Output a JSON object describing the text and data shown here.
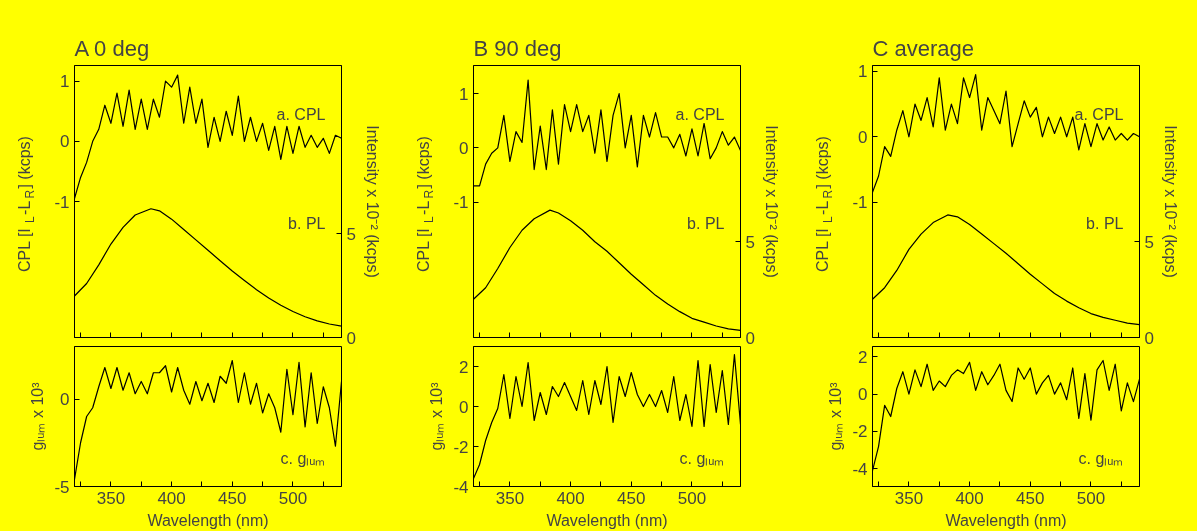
{
  "chart_data": [
    {
      "type": "line",
      "title": "A 0 deg",
      "ylabel": "CPL [I$_{L}$-L$_{R}$] (kcps)",
      "y2label": "Intensity x 10⁻² (kcps)",
      "annotations": [
        "a. CPL",
        "b. PL"
      ],
      "xlim": [
        320,
        540
      ],
      "xticks": [
        {
          "value": 325,
          "label": null
        },
        350,
        {
          "value": 375,
          "label": null
        },
        400,
        {
          "value": 425,
          "label": null
        },
        450,
        {
          "value": 475,
          "label": null
        },
        500,
        {
          "value": 525,
          "label": null
        }
      ],
      "ylim": [
        -3.26,
        1.26
      ],
      "yticks": [
        -1,
        0,
        1
      ],
      "y2lim": [
        0,
        13.1
      ],
      "y2ticks": [
        0,
        5
      ],
      "tick_labels": "y",
      "x": [
        320,
        325,
        330,
        335,
        340,
        345,
        350,
        355,
        360,
        365,
        370,
        375,
        380,
        385,
        390,
        395,
        400,
        405,
        410,
        415,
        420,
        425,
        430,
        435,
        440,
        445,
        450,
        455,
        460,
        465,
        470,
        475,
        480,
        485,
        490,
        495,
        500,
        505,
        510,
        515,
        520,
        525,
        530,
        535,
        540
      ],
      "series": [
        {
          "color": "#000000",
          "values": [
            -0.95,
            -0.6,
            -0.35,
            0.0,
            0.2,
            0.6,
            0.3,
            0.8,
            0.25,
            0.85,
            0.2,
            0.7,
            0.2,
            0.7,
            0.4,
            1.0,
            0.9,
            1.1,
            0.3,
            0.9,
            0.3,
            0.7,
            -0.1,
            0.4,
            0.0,
            0.5,
            0.1,
            0.75,
            0.0,
            0.4,
            0.0,
            0.3,
            -0.15,
            0.25,
            -0.3,
            0.25,
            -0.2,
            0.25,
            -0.1,
            0.1,
            -0.1,
            0.05,
            -0.2,
            0.1,
            0.05
          ]
        },
        {
          "color": "#000000",
          "axis": "y2",
          "x": [
            320,
            330,
            340,
            350,
            360,
            370,
            383,
            390,
            400,
            410,
            420,
            430,
            440,
            450,
            460,
            470,
            480,
            490,
            500,
            510,
            520,
            530,
            540
          ],
          "values": [
            2.0,
            2.6,
            3.5,
            4.5,
            5.3,
            5.9,
            6.2,
            6.1,
            5.7,
            5.2,
            4.7,
            4.2,
            3.7,
            3.2,
            2.75,
            2.3,
            1.9,
            1.55,
            1.25,
            1.0,
            0.8,
            0.65,
            0.55
          ]
        }
      ]
    },
    {
      "type": "line",
      "xlabel": "Wavelength (nm)",
      "ylabel": "gₗᵤₘ x 10³",
      "annotations": [
        "c. gₗᵤₘ"
      ],
      "xlim": [
        320,
        540
      ],
      "xticks": [
        {
          "value": 325,
          "label": null
        },
        350,
        {
          "value": 375,
          "label": null
        },
        400,
        {
          "value": 425,
          "label": null
        },
        450,
        {
          "value": 475,
          "label": null
        },
        500,
        {
          "value": 525,
          "label": null
        }
      ],
      "ylim": [
        -5,
        3
      ],
      "yticks": [
        -5,
        0
      ],
      "x": [
        320,
        325,
        330,
        335,
        340,
        345,
        350,
        355,
        360,
        365,
        370,
        375,
        380,
        385,
        390,
        395,
        400,
        405,
        410,
        415,
        420,
        425,
        430,
        435,
        440,
        445,
        450,
        455,
        460,
        465,
        470,
        475,
        480,
        485,
        490,
        495,
        500,
        505,
        510,
        515,
        520,
        525,
        530,
        535,
        540
      ],
      "series": [
        {
          "color": "#000000",
          "values": [
            -4.6,
            -2.5,
            -1.0,
            -0.5,
            0.7,
            1.8,
            0.6,
            1.8,
            0.5,
            1.5,
            0.3,
            1.0,
            0.3,
            1.5,
            1.5,
            1.9,
            0.4,
            1.8,
            0.5,
            -0.3,
            1.0,
            -0.1,
            0.9,
            -0.2,
            1.3,
            0.9,
            2.2,
            -0.2,
            1.5,
            -0.3,
            0.9,
            -0.8,
            0.3,
            -0.5,
            -1.9,
            1.7,
            -0.9,
            2.1,
            -1.6,
            1.5,
            -1.4,
            0.7,
            -0.5,
            -2.7,
            1.0
          ]
        }
      ]
    },
    {
      "type": "line",
      "title": "B 90 deg",
      "ylabel": "CPL [I$_{L}$-L$_{R}$] (kcps)",
      "y2label": "Intensity x 10⁻² (kcps)",
      "annotations": [
        "a. CPL",
        "b. PL"
      ],
      "xlim": [
        320,
        540
      ],
      "xticks": [
        {
          "value": 325,
          "label": null
        },
        350,
        {
          "value": 375,
          "label": null
        },
        400,
        {
          "value": 425,
          "label": null
        },
        450,
        {
          "value": 475,
          "label": null
        },
        500,
        {
          "value": 525,
          "label": null
        }
      ],
      "ylim": [
        -3.5,
        1.52
      ],
      "yticks": [
        -1,
        0,
        1
      ],
      "y2lim": [
        0,
        14.2
      ],
      "y2ticks": [
        0,
        5
      ],
      "tick_labels": "y",
      "x": [
        320,
        325,
        330,
        335,
        340,
        345,
        350,
        355,
        360,
        365,
        370,
        375,
        380,
        385,
        390,
        395,
        400,
        405,
        410,
        415,
        420,
        425,
        430,
        435,
        440,
        445,
        450,
        455,
        460,
        465,
        470,
        475,
        480,
        485,
        490,
        495,
        500,
        505,
        510,
        515,
        520,
        525,
        530,
        535,
        540
      ],
      "series": [
        {
          "color": "#000000",
          "values": [
            -0.7,
            -0.7,
            -0.3,
            -0.1,
            0.0,
            0.6,
            -0.25,
            0.3,
            0.1,
            1.25,
            -0.4,
            0.4,
            -0.4,
            0.7,
            -0.3,
            0.8,
            0.3,
            0.8,
            0.3,
            0.6,
            -0.1,
            0.7,
            -0.25,
            0.6,
            1.0,
            0.0,
            0.6,
            -0.35,
            0.6,
            0.2,
            0.65,
            0.2,
            0.2,
            0.0,
            0.25,
            -0.15,
            0.35,
            -0.15,
            0.45,
            -0.2,
            0.0,
            0.3,
            0.05,
            0.2,
            -0.05
          ]
        },
        {
          "color": "#000000",
          "axis": "y2",
          "x": [
            320,
            330,
            340,
            350,
            360,
            370,
            383,
            390,
            400,
            410,
            420,
            430,
            440,
            450,
            460,
            470,
            480,
            490,
            500,
            510,
            520,
            530,
            540
          ],
          "values": [
            2.0,
            2.6,
            3.6,
            4.7,
            5.6,
            6.2,
            6.65,
            6.5,
            6.1,
            5.6,
            5.0,
            4.5,
            3.9,
            3.3,
            2.75,
            2.2,
            1.75,
            1.35,
            1.0,
            0.8,
            0.6,
            0.45,
            0.37
          ]
        }
      ]
    },
    {
      "type": "line",
      "xlabel": "Wavelength (nm)",
      "ylabel": "gₗᵤₘ x 10³",
      "annotations": [
        "c. gₗᵤₘ"
      ],
      "xlim": [
        320,
        540
      ],
      "xticks": [
        {
          "value": 325,
          "label": null
        },
        350,
        {
          "value": 375,
          "label": null
        },
        400,
        {
          "value": 425,
          "label": null
        },
        450,
        {
          "value": 475,
          "label": null
        },
        500,
        {
          "value": 525,
          "label": null
        }
      ],
      "ylim": [
        -4,
        3
      ],
      "yticks": [
        -4,
        -2,
        0,
        2
      ],
      "x": [
        320,
        325,
        330,
        335,
        340,
        345,
        350,
        355,
        360,
        365,
        370,
        375,
        380,
        385,
        390,
        395,
        400,
        405,
        410,
        415,
        420,
        425,
        430,
        435,
        440,
        445,
        450,
        455,
        460,
        465,
        470,
        475,
        480,
        485,
        490,
        495,
        500,
        505,
        510,
        515,
        520,
        525,
        530,
        535,
        540
      ],
      "series": [
        {
          "color": "#000000",
          "values": [
            -3.6,
            -2.9,
            -1.7,
            -0.8,
            -0.1,
            1.6,
            -0.6,
            1.5,
            0.0,
            2.2,
            -0.7,
            0.7,
            -0.4,
            1.0,
            0.5,
            1.2,
            0.5,
            -0.2,
            1.3,
            -0.4,
            1.3,
            0.1,
            2.0,
            -0.8,
            1.5,
            0.5,
            1.7,
            0.6,
            0.0,
            0.6,
            0.0,
            0.8,
            -0.3,
            1.5,
            -0.7,
            0.6,
            -1.0,
            2.3,
            -1.0,
            2.1,
            -0.3,
            1.8,
            -0.9,
            2.6,
            -0.9
          ]
        }
      ]
    },
    {
      "type": "line",
      "title": "C average",
      "ylabel": "CPL [I$_{L}$-L$_{R}$] (kcps)",
      "y2label": "Intensity x 10⁻² (kcps)",
      "annotations": [
        "a. CPL",
        "b. PL"
      ],
      "xlim": [
        320,
        540
      ],
      "xticks": [
        {
          "value": 325,
          "label": null
        },
        350,
        {
          "value": 375,
          "label": null
        },
        400,
        {
          "value": 425,
          "label": null
        },
        450,
        {
          "value": 475,
          "label": null
        },
        500,
        {
          "value": 525,
          "label": null
        }
      ],
      "ylim": [
        -3.07,
        1.09
      ],
      "yticks": [
        -1,
        0,
        1
      ],
      "y2lim": [
        0,
        14.2
      ],
      "y2ticks": [
        0,
        5
      ],
      "tick_labels": "y",
      "x": [
        320,
        325,
        330,
        335,
        340,
        345,
        350,
        355,
        360,
        365,
        370,
        375,
        380,
        385,
        390,
        395,
        400,
        405,
        410,
        415,
        420,
        425,
        430,
        435,
        440,
        445,
        450,
        455,
        460,
        465,
        470,
        475,
        480,
        485,
        490,
        495,
        500,
        505,
        510,
        515,
        520,
        525,
        530,
        535,
        540
      ],
      "series": [
        {
          "color": "#000000",
          "values": [
            -0.85,
            -0.6,
            -0.15,
            -0.3,
            0.1,
            0.4,
            0.0,
            0.5,
            0.25,
            0.6,
            0.15,
            0.9,
            0.1,
            0.5,
            0.2,
            0.9,
            0.6,
            0.95,
            0.1,
            0.6,
            0.4,
            0.2,
            0.7,
            -0.15,
            0.2,
            0.55,
            0.3,
            0.45,
            0.0,
            0.3,
            0.05,
            0.3,
            0.0,
            0.3,
            -0.2,
            0.2,
            -0.15,
            0.2,
            -0.05,
            0.15,
            -0.05,
            0.05,
            -0.05,
            0.05,
            0.0
          ]
        },
        {
          "color": "#000000",
          "axis": "y2",
          "x": [
            320,
            330,
            340,
            350,
            360,
            370,
            382,
            390,
            400,
            410,
            420,
            430,
            440,
            450,
            460,
            470,
            480,
            490,
            500,
            510,
            520,
            530,
            540
          ],
          "values": [
            2.0,
            2.6,
            3.5,
            4.6,
            5.4,
            6.0,
            6.4,
            6.3,
            5.9,
            5.4,
            4.9,
            4.4,
            3.85,
            3.3,
            2.8,
            2.3,
            1.9,
            1.55,
            1.25,
            1.05,
            0.9,
            0.75,
            0.67
          ]
        }
      ]
    },
    {
      "type": "line",
      "xlabel": "Wavelength (nm)",
      "ylabel": "gₗᵤₘ x 10³",
      "annotations": [
        "c. gₗᵤₘ"
      ],
      "xlim": [
        320,
        540
      ],
      "xticks": [
        {
          "value": 325,
          "label": null
        },
        350,
        {
          "value": 375,
          "label": null
        },
        400,
        {
          "value": 425,
          "label": null
        },
        450,
        {
          "value": 475,
          "label": null
        },
        500,
        {
          "value": 525,
          "label": null
        }
      ],
      "ylim": [
        -4.95,
        2.55
      ],
      "yticks": [
        -4,
        -2,
        0,
        2
      ],
      "x": [
        320,
        325,
        330,
        335,
        340,
        345,
        350,
        355,
        360,
        365,
        370,
        375,
        380,
        385,
        390,
        395,
        400,
        405,
        410,
        415,
        420,
        425,
        430,
        435,
        440,
        445,
        450,
        455,
        460,
        465,
        470,
        475,
        480,
        485,
        490,
        495,
        500,
        505,
        510,
        515,
        520,
        525,
        530,
        535,
        540
      ],
      "series": [
        {
          "color": "#000000",
          "values": [
            -4.1,
            -2.8,
            -0.6,
            -1.2,
            0.3,
            1.2,
            0.0,
            1.3,
            0.4,
            1.6,
            0.2,
            0.7,
            0.4,
            1.0,
            1.3,
            1.1,
            1.7,
            0.2,
            1.2,
            0.5,
            1.0,
            1.6,
            0.2,
            -0.4,
            1.4,
            0.8,
            1.4,
            0.0,
            0.6,
            1.0,
            0.0,
            0.6,
            -0.3,
            1.4,
            -1.3,
            1.1,
            -1.4,
            1.3,
            1.8,
            0.2,
            1.6,
            -0.9,
            0.6,
            -0.4,
            0.8
          ]
        }
      ]
    }
  ]
}
